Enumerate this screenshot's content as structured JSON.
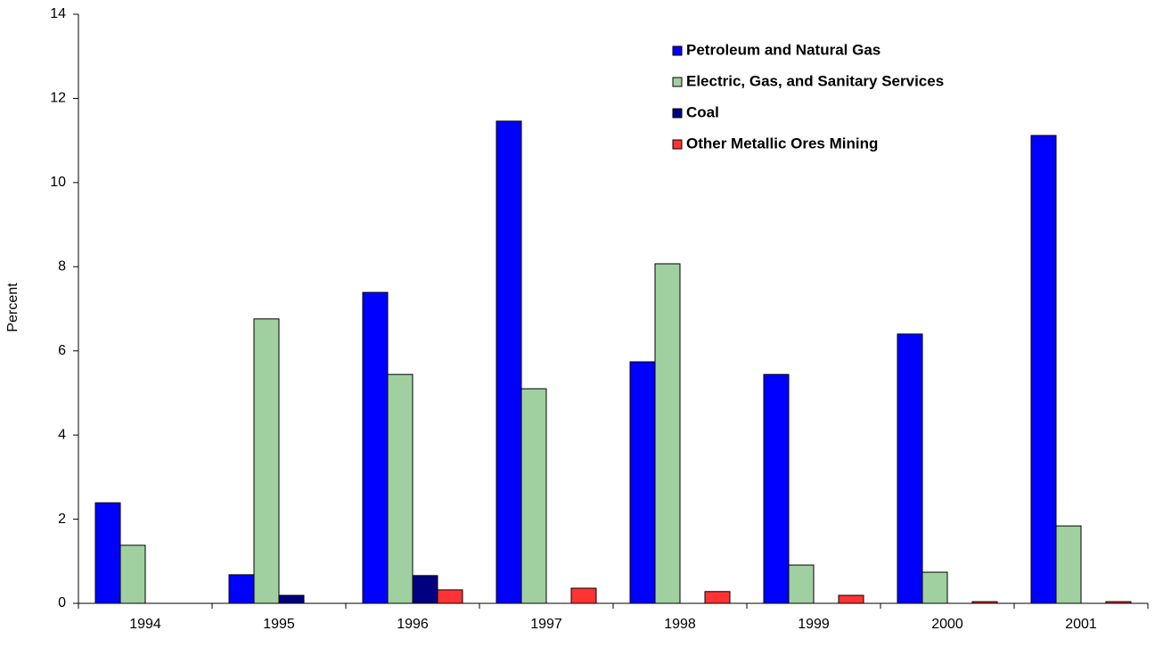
{
  "chart_data": {
    "type": "bar",
    "y_label": "Percent",
    "categories": [
      "1994",
      "1995",
      "1996",
      "1997",
      "1998",
      "1999",
      "2000",
      "2001"
    ],
    "series": [
      {
        "name": "Petroleum and Natural Gas",
        "color": "#0000ff",
        "values": [
          2.39,
          0.68,
          7.39,
          11.46,
          5.74,
          5.44,
          6.4,
          11.12
        ]
      },
      {
        "name": "Electric, Gas, and Sanitary Services",
        "color": "#a0d0a0",
        "values": [
          1.38,
          6.76,
          5.44,
          5.1,
          8.07,
          0.91,
          0.74,
          1.84
        ]
      },
      {
        "name": "Coal",
        "color": "#000080",
        "values": [
          0,
          0.19,
          0.66,
          0,
          0,
          0,
          0,
          0
        ]
      },
      {
        "name": "Other Metallic Ores Mining",
        "color": "#ff3333",
        "values": [
          0,
          0,
          0.32,
          0.36,
          0.28,
          0.19,
          0.04,
          0.04
        ]
      }
    ],
    "ylim": [
      0,
      14
    ],
    "yticks": [
      0,
      2,
      4,
      6,
      8,
      10,
      12,
      14
    ],
    "legend": "upper-right"
  }
}
